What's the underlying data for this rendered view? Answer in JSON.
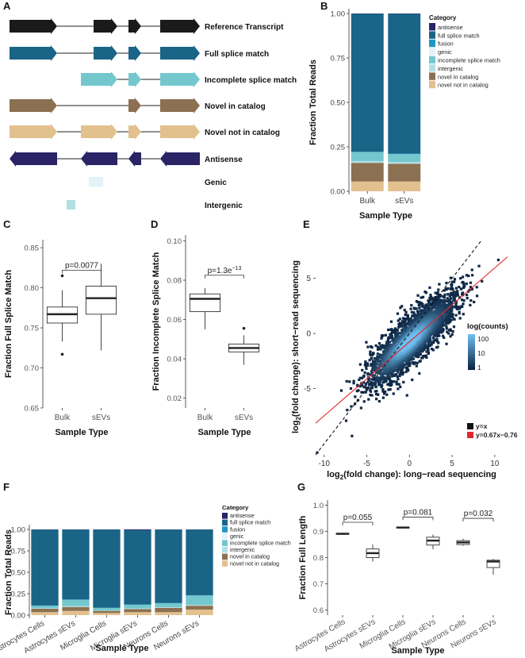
{
  "colors": {
    "antisense": "#2a2466",
    "full_splice_match": "#1a6487",
    "fusion": "#1f97c4",
    "genic": "#e3f2f8",
    "incomplete_splice_match": "#75c7ce",
    "intergenic": "#b2e0e2",
    "novel_in_catalog": "#8c7052",
    "novel_not_in_catalog": "#e2c18f",
    "reference": "#1a1a1a",
    "box_fill": "#ffffff",
    "box_stroke": "#333333"
  },
  "panels": {
    "A": {
      "letter": "A",
      "rows": [
        {
          "label": "Reference Transcript",
          "color_key": "reference",
          "dir": "right",
          "exons": [
            [
              12,
              72
            ],
            [
              118,
              148
            ],
            [
              162,
              178
            ],
            [
              202,
              252
            ]
          ]
        },
        {
          "label": "Full splice match",
          "color_key": "full_splice_match",
          "dir": "right",
          "exons": [
            [
              12,
              72
            ],
            [
              118,
              148
            ],
            [
              162,
              178
            ],
            [
              202,
              252
            ]
          ]
        },
        {
          "label": "Incomplete splice match",
          "color_key": "incomplete_splice_match",
          "dir": "right",
          "exons": [
            [
              102,
              148
            ],
            [
              162,
              178
            ],
            [
              202,
              252
            ]
          ]
        },
        {
          "label": "Novel in catalog",
          "color_key": "novel_in_catalog",
          "dir": "right",
          "exons": [
            [
              12,
              72
            ],
            [
              162,
              178
            ],
            [
              202,
              252
            ]
          ]
        },
        {
          "label": "Novel not in catalog",
          "color_key": "novel_not_in_catalog",
          "dir": "right",
          "exons": [
            [
              12,
              72
            ],
            [
              102,
              148
            ],
            [
              162,
              178
            ],
            [
              202,
              252
            ]
          ]
        },
        {
          "label": "Antisense",
          "color_key": "antisense",
          "dir": "left",
          "exons": [
            [
              12,
              72
            ],
            [
              102,
              148
            ],
            [
              162,
              178
            ],
            [
              202,
              252
            ]
          ]
        },
        {
          "label": "Genic",
          "color_key": "genic",
          "dir": "none",
          "exons": [
            [
              112,
              130
            ]
          ]
        },
        {
          "label": "Intergenic",
          "color_key": "intergenic",
          "dir": "none",
          "exons": [
            [
              84,
              95
            ]
          ]
        }
      ]
    },
    "B": {
      "letter": "B",
      "legend_title": "Category",
      "legend_items": [
        "antisense",
        "full splice match",
        "fusion",
        "genic",
        "incomplete splice match",
        "intergenic",
        "novel in catalog",
        "novel not in catalog"
      ]
    },
    "C": {
      "letter": "C",
      "annotation": "p=0.0077"
    },
    "D": {
      "letter": "D",
      "annotation": "p=1.3e",
      "annotation_exp": "−13"
    },
    "E": {
      "letter": "E",
      "ylabel_a": "log",
      "ylabel_sub": "2",
      "ylabel_b": "(fold change): short−read sequencing",
      "xlabel_a": "log",
      "xlabel_sub": "2",
      "xlabel_b": "(fold change): long−read sequencing",
      "colorbar_title": "log(counts)",
      "colorbar_ticks": [
        "100",
        "10",
        "1"
      ],
      "lines_legend": [
        {
          "label": "y=x",
          "color": "#111111"
        },
        {
          "label": "y=0.67x−0.76",
          "color": "#e0262b"
        }
      ]
    },
    "F": {
      "letter": "F",
      "legend_title": "Category",
      "legend_items": [
        "antisense",
        "full splice match",
        "fusion",
        "genic",
        "incomplete splice match",
        "intergenic",
        "novel in catalog",
        "novel not in catalog"
      ]
    },
    "G": {
      "letter": "G",
      "annotations": [
        "p=0.055",
        "p=0.081",
        "p=0.032"
      ]
    }
  },
  "chart_data": [
    {
      "panel": "B",
      "type": "bar",
      "stacked": true,
      "categories": [
        "Bulk",
        "sEVs"
      ],
      "series": [
        {
          "name": "novel not in catalog",
          "values": [
            0.055,
            0.055
          ]
        },
        {
          "name": "novel in catalog",
          "values": [
            0.105,
            0.1
          ]
        },
        {
          "name": "intergenic",
          "values": [
            0.01,
            0.01
          ]
        },
        {
          "name": "incomplete splice match",
          "values": [
            0.05,
            0.045
          ]
        },
        {
          "name": "genic",
          "values": [
            0.0,
            0.0
          ]
        },
        {
          "name": "fusion",
          "values": [
            0.002,
            0.002
          ]
        },
        {
          "name": "full splice match",
          "values": [
            0.776,
            0.786
          ]
        },
        {
          "name": "antisense",
          "values": [
            0.002,
            0.002
          ]
        }
      ],
      "xlabel": "Sample Type",
      "ylabel": "Fraction Total Reads",
      "ylim": [
        0,
        1
      ],
      "yticks": [
        "0.00",
        "0.25",
        "0.50",
        "0.75",
        "1.00"
      ],
      "legend": "right"
    },
    {
      "panel": "C",
      "type": "box",
      "categories": [
        "Bulk",
        "sEVs"
      ],
      "boxes": [
        {
          "whisker_low": 0.733,
          "q1": 0.756,
          "median": 0.767,
          "q3": 0.776,
          "whisker_high": 0.797,
          "outliers": [
            0.815,
            0.717
          ]
        },
        {
          "whisker_low": 0.722,
          "q1": 0.767,
          "median": 0.787,
          "q3": 0.802,
          "whisker_high": 0.83,
          "outliers": []
        }
      ],
      "xlabel": "Sample Type",
      "ylabel": "Fraction Full Splice Match",
      "ylim": [
        0.65,
        0.86
      ],
      "yticks": [
        "0.65",
        "0.70",
        "0.75",
        "0.80",
        "0.85"
      ]
    },
    {
      "panel": "D",
      "type": "box",
      "categories": [
        "Bulk",
        "sEVs"
      ],
      "boxes": [
        {
          "whisker_low": 0.055,
          "q1": 0.064,
          "median": 0.0705,
          "q3": 0.073,
          "whisker_high": 0.076,
          "outliers": []
        },
        {
          "whisker_low": 0.037,
          "q1": 0.0435,
          "median": 0.0455,
          "q3": 0.0475,
          "whisker_high": 0.052,
          "outliers": [
            0.0555
          ]
        }
      ],
      "xlabel": "Sample Type",
      "ylabel": "Fraction Incomplete Splice Match",
      "ylim": [
        0.015,
        0.103
      ],
      "yticks": [
        "0.02",
        "0.04",
        "0.06",
        "0.08",
        "0.10"
      ]
    },
    {
      "panel": "E",
      "type": "scatter",
      "density": true,
      "xlim": [
        -11,
        11.5
      ],
      "ylim": [
        -11,
        8.5
      ],
      "xticks": [
        -10,
        -5,
        0,
        5,
        10
      ],
      "yticks": [
        -5,
        0,
        5
      ],
      "lines": [
        {
          "label": "y=x",
          "slope": 1,
          "intercept": 0,
          "style": "dashed"
        },
        {
          "label": "y=0.67x−0.76",
          "slope": 0.67,
          "intercept": -0.76,
          "style": "solid"
        }
      ]
    },
    {
      "panel": "F",
      "type": "bar",
      "stacked": true,
      "categories": [
        "Astrocytes Cells",
        "Astrocytes sEVs",
        "Microglia Cells",
        "Microglia sEVs",
        "Neurons Cells",
        "Neurons sEVs"
      ],
      "series": [
        {
          "name": "novel not in catalog",
          "values": [
            0.035,
            0.05,
            0.025,
            0.035,
            0.035,
            0.065
          ]
        },
        {
          "name": "novel in catalog",
          "values": [
            0.04,
            0.045,
            0.025,
            0.035,
            0.05,
            0.045
          ]
        },
        {
          "name": "intergenic",
          "values": [
            0.005,
            0.01,
            0.005,
            0.008,
            0.008,
            0.01
          ]
        },
        {
          "name": "incomplete splice match",
          "values": [
            0.03,
            0.075,
            0.03,
            0.045,
            0.047,
            0.11
          ]
        },
        {
          "name": "genic",
          "values": [
            0.0,
            0.0,
            0.0,
            0.0,
            0.0,
            0.0
          ]
        },
        {
          "name": "fusion",
          "values": [
            0.002,
            0.002,
            0.002,
            0.002,
            0.002,
            0.002
          ]
        },
        {
          "name": "full splice match",
          "values": [
            0.886,
            0.816,
            0.911,
            0.865,
            0.856,
            0.766
          ]
        },
        {
          "name": "antisense",
          "values": [
            0.002,
            0.002,
            0.002,
            0.01,
            0.002,
            0.002
          ]
        }
      ],
      "xlabel": "Sample Type",
      "ylabel": "Fraction Total Reads",
      "ylim": [
        0,
        1
      ],
      "yticks": [
        "0.00",
        "0.25",
        "0.50",
        "0.75",
        "1.00"
      ],
      "legend": "right"
    },
    {
      "panel": "G",
      "type": "box",
      "categories": [
        "Astrocytes Cells",
        "Astrocytes sEVs",
        "Microglia Cells",
        "Microglia sEVs",
        "Neurons Cells",
        "Neurons sEVs"
      ],
      "boxes": [
        {
          "whisker_low": 0.887,
          "q1": 0.889,
          "median": 0.891,
          "q3": 0.893,
          "whisker_high": 0.895,
          "outliers": []
        },
        {
          "whisker_low": 0.785,
          "q1": 0.8,
          "median": 0.817,
          "q3": 0.833,
          "whisker_high": 0.85,
          "outliers": []
        },
        {
          "whisker_low": 0.912,
          "q1": 0.913,
          "median": 0.915,
          "q3": 0.916,
          "whisker_high": 0.918,
          "outliers": []
        },
        {
          "whisker_low": 0.832,
          "q1": 0.848,
          "median": 0.865,
          "q3": 0.878,
          "whisker_high": 0.888,
          "outliers": []
        },
        {
          "whisker_low": 0.845,
          "q1": 0.85,
          "median": 0.858,
          "q3": 0.865,
          "whisker_high": 0.872,
          "outliers": []
        },
        {
          "whisker_low": 0.735,
          "q1": 0.762,
          "median": 0.785,
          "q3": 0.79,
          "whisker_high": 0.795,
          "outliers": []
        }
      ],
      "brackets": [
        {
          "from": 0,
          "to": 1,
          "label_index": 0,
          "y": 0.935
        },
        {
          "from": 2,
          "to": 3,
          "label_index": 1,
          "y": 0.955
        },
        {
          "from": 4,
          "to": 5,
          "label_index": 2,
          "y": 0.95
        }
      ],
      "xlabel": "Sample Type",
      "ylabel": "Fraction Full Length",
      "ylim": [
        0.58,
        1.02
      ],
      "yticks": [
        "0.6",
        "0.7",
        "0.8",
        "0.9",
        "1.0"
      ]
    }
  ]
}
